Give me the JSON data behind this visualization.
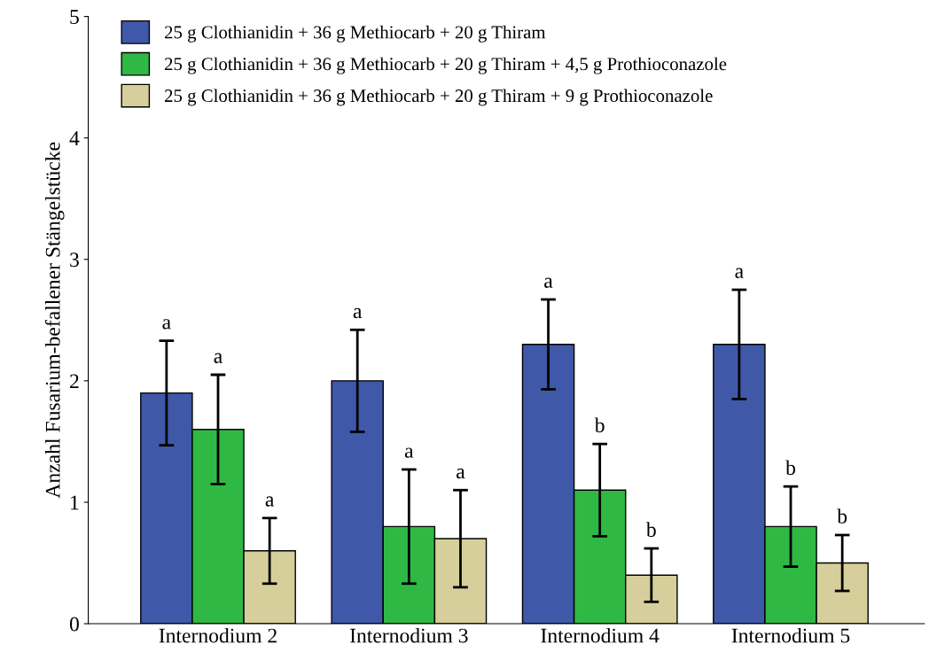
{
  "chart_data": {
    "type": "bar",
    "ylabel": "Anzahl Fusarium-befallener Stängelstücke",
    "categories": [
      "Internodium 2",
      "Internodium 3",
      "Internodium 4",
      "Internodium 5"
    ],
    "series": [
      {
        "name": "25 g Clothianidin + 36 g Methiocarb + 20 g Thiram",
        "color": "#3f58a8",
        "values": [
          1.9,
          2.0,
          2.3,
          2.3
        ],
        "errors": [
          0.43,
          0.42,
          0.37,
          0.45
        ]
      },
      {
        "name": "25 g Clothianidin + 36 g Methiocarb + 20 g Thiram + 4,5 g Prothioconazole",
        "color": "#2fb944",
        "values": [
          1.6,
          0.8,
          1.1,
          0.8
        ],
        "errors": [
          0.45,
          0.47,
          0.38,
          0.33
        ]
      },
      {
        "name": "25 g Clothianidin + 36 g Methiocarb + 20 g Thiram + 9 g Prothioconazole",
        "color": "#d6cf9c",
        "values": [
          0.6,
          0.7,
          0.4,
          0.5
        ],
        "errors": [
          0.27,
          0.4,
          0.22,
          0.23
        ]
      }
    ],
    "annotations": [
      "a",
      "a",
      "a",
      "a",
      "a",
      "a",
      "a",
      "b",
      "b",
      "a",
      "b",
      "b"
    ],
    "ylim": [
      0,
      5
    ],
    "yticks": [
      0,
      1,
      2,
      3,
      4,
      5
    ],
    "grid": false,
    "legend": "top left"
  }
}
